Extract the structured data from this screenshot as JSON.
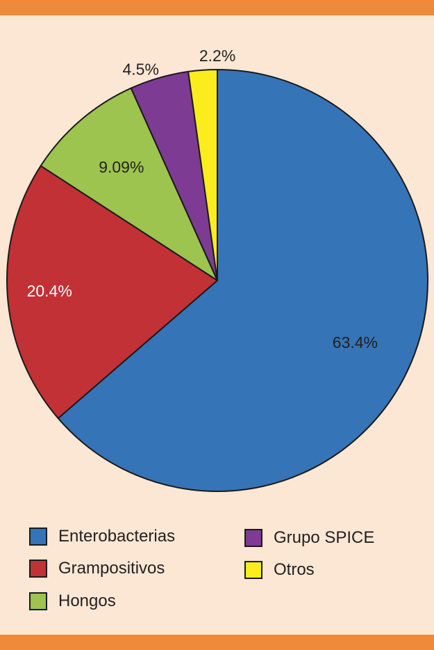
{
  "chart_data": {
    "type": "pie",
    "title": "",
    "start_angle_deg": 0,
    "direction": "clockwise",
    "slices": [
      {
        "label": "Enterobacterias",
        "value": 63.4,
        "display": "63.4%",
        "color": "#3574b6",
        "label_color": "#231f20"
      },
      {
        "label": "Grampositivos",
        "value": 20.4,
        "display": "20.4%",
        "color": "#c23136",
        "label_color": "#ffffff"
      },
      {
        "label": "Hongos",
        "value": 9.09,
        "display": "9.09%",
        "color": "#9dc44e",
        "label_color": "#231f20"
      },
      {
        "label": "Grupo SPICE",
        "value": 4.5,
        "display": "4.5%",
        "color": "#7d3b93",
        "label_color": "#231f20"
      },
      {
        "label": "Otros",
        "value": 2.2,
        "display": "2.2%",
        "color": "#fbed1d",
        "label_color": "#231f20"
      }
    ]
  },
  "legend": {
    "items": [
      {
        "label": "Enterobacterias",
        "color": "#3574b6"
      },
      {
        "label": "Grampositivos",
        "color": "#c23136"
      },
      {
        "label": "Hongos",
        "color": "#9dc44e"
      },
      {
        "label": "Grupo SPICE",
        "color": "#7d3b93"
      },
      {
        "label": "Otros",
        "color": "#fbed1d"
      }
    ]
  },
  "colors": {
    "background": "#fce7d4",
    "accent_bar": "#ee8a3a",
    "outline": "#1a1a1a"
  }
}
